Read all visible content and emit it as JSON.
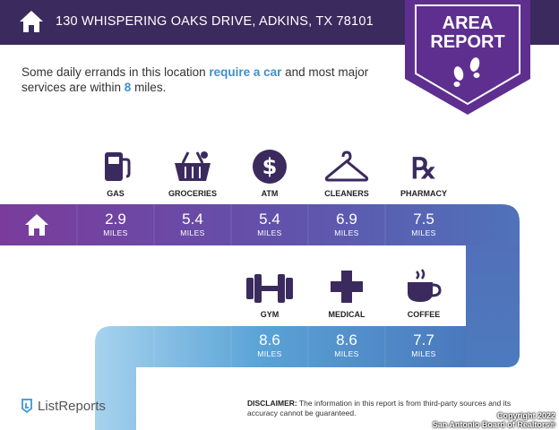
{
  "header": {
    "address": "130 WHISPERING OAKS DRIVE, ADKINS, TX 78101"
  },
  "badge": {
    "line1": "AREA",
    "line2": "REPORT"
  },
  "intro": {
    "part1": "Some daily errands in this location ",
    "highlight1": "require a car",
    "part2": " and most major services are within ",
    "highlight2": "8",
    "part3": " miles."
  },
  "unit_label": "MILES",
  "row1": [
    {
      "label": "GAS",
      "value": "2.9",
      "icon": "gas-pump-icon",
      "color": "#6b3f9b"
    },
    {
      "label": "GROCERIES",
      "value": "5.4",
      "icon": "grocery-basket-icon",
      "color": "#6945a0"
    },
    {
      "label": "ATM",
      "value": "5.4",
      "icon": "dollar-icon",
      "color": "#6a4ba6"
    },
    {
      "label": "CLEANERS",
      "value": "6.9",
      "icon": "hanger-icon",
      "color": "#6657ad"
    },
    {
      "label": "PHARMACY",
      "value": "7.5",
      "icon": "rx-icon",
      "color": "#5b67b4"
    }
  ],
  "row2": [
    {
      "label": "GYM",
      "value": "8.6",
      "icon": "dumbbell-icon",
      "color": "#5279bf"
    },
    {
      "label": "MEDICAL",
      "value": "8.6",
      "icon": "medical-cross-icon",
      "color": "#4f85c6"
    },
    {
      "label": "COFFEE",
      "value": "7.7",
      "icon": "coffee-cup-icon",
      "color": "#4d76bb"
    }
  ],
  "disclaimer": {
    "title": "DISCLAIMER:",
    "text": " The information in this report is from third-party sources and its accuracy cannot be guaranteed."
  },
  "logo": {
    "text": "ListReports"
  },
  "copyright": {
    "line1": "Copyright 2022",
    "line2": "San Antonio Board of Realtors®"
  },
  "colors": {
    "header": "#3b2a5e",
    "badge": "#5e2f8f",
    "highlight": "#3f8fc9",
    "road_start": "#7a3c9c",
    "road_light": "#9ccbea",
    "icon": "#3b2a5e"
  }
}
